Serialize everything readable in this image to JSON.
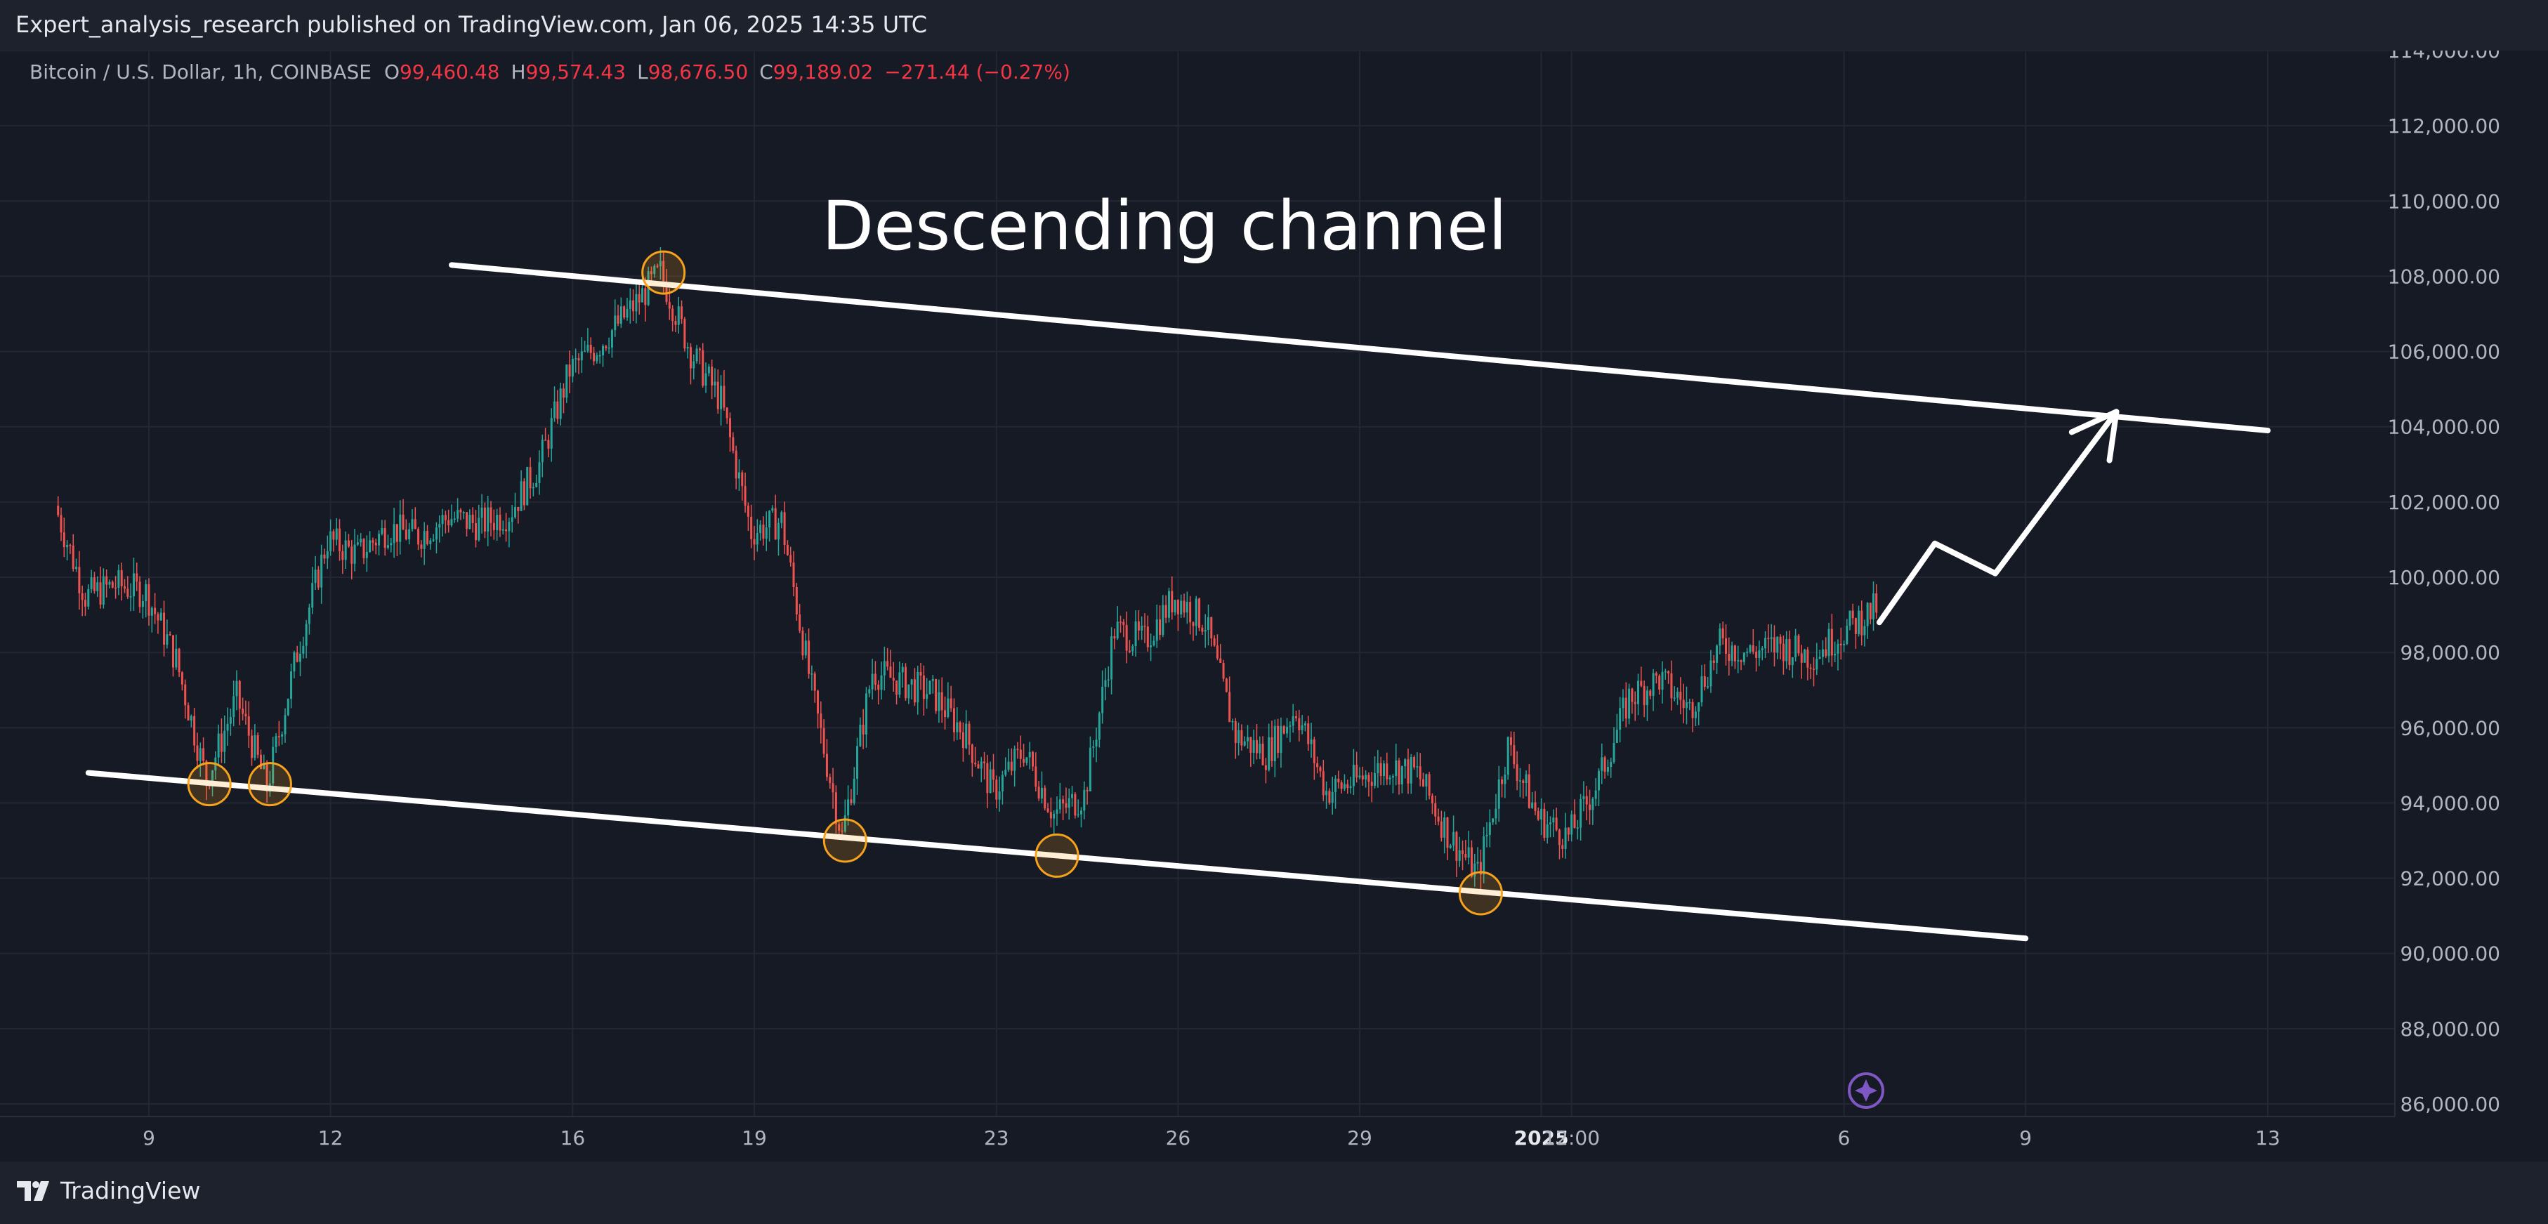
{
  "header": {
    "publish_line": "Expert_analysis_research published on TradingView.com, Jan 06, 2025 14:35 UTC"
  },
  "legend": {
    "symbol": "Bitcoin / U.S. Dollar, 1h, COINBASE",
    "o_label": "O",
    "o_value": "99,460.48",
    "h_label": "H",
    "h_value": "99,574.43",
    "l_label": "L",
    "l_value": "98,676.50",
    "c_label": "C",
    "c_value": "99,189.02",
    "change": "−271.44 (−0.27%)"
  },
  "footer": {
    "brand": "TradingView"
  },
  "colors": {
    "background": "#161a25",
    "grid": "#232733",
    "up": "#26a69a",
    "down": "#ef5350",
    "annotation": "#ffffff",
    "marker": "#f7a21b",
    "badge": "#7e57c2"
  },
  "chart_data": {
    "type": "line",
    "title": "",
    "annotation_text": "Descending channel",
    "y_ticks": [
      "114,000.00",
      "112,000.00",
      "110,000.00",
      "108,000.00",
      "106,000.00",
      "104,000.00",
      "102,000.00",
      "100,000.00",
      "98,000.00",
      "96,000.00",
      "94,000.00",
      "92,000.00",
      "90,000.00",
      "88,000.00",
      "86,000.00"
    ],
    "ylim": [
      86000,
      114000
    ],
    "x_ticks": [
      "9",
      "12",
      "16",
      "19",
      "23",
      "26",
      "29",
      "2025",
      "12:00",
      "6",
      "9",
      "13"
    ],
    "grid": true,
    "series": [
      {
        "values": [
          {
            "x": "Dec 7 12:00",
            "y": 101900
          },
          {
            "x": "Dec 8 00:00",
            "y": 99500
          },
          {
            "x": "Dec 8 12:00",
            "y": 99800
          },
          {
            "x": "Dec 9 00:00",
            "y": 99600
          },
          {
            "x": "Dec 9 12:00",
            "y": 97800
          },
          {
            "x": "Dec 10 00:00",
            "y": 94600
          },
          {
            "x": "Dec 10 12:00",
            "y": 96800
          },
          {
            "x": "Dec 11 00:00",
            "y": 94400
          },
          {
            "x": "Dec 11 12:00",
            "y": 98000
          },
          {
            "x": "Dec 12 00:00",
            "y": 101000
          },
          {
            "x": "Dec 12 12:00",
            "y": 100600
          },
          {
            "x": "Dec 13 00:00",
            "y": 101300
          },
          {
            "x": "Dec 13 12:00",
            "y": 101100
          },
          {
            "x": "Dec 14 00:00",
            "y": 101600
          },
          {
            "x": "Dec 14 12:00",
            "y": 101400
          },
          {
            "x": "Dec 15 00:00",
            "y": 101700
          },
          {
            "x": "Dec 15 12:00",
            "y": 103000
          },
          {
            "x": "Dec 16 00:00",
            "y": 105500
          },
          {
            "x": "Dec 16 12:00",
            "y": 106200
          },
          {
            "x": "Dec 17 00:00",
            "y": 107100
          },
          {
            "x": "Dec 17 12:00",
            "y": 108100
          },
          {
            "x": "Dec 18 00:00",
            "y": 106000
          },
          {
            "x": "Dec 18 12:00",
            "y": 104700
          },
          {
            "x": "Dec 19 00:00",
            "y": 101200
          },
          {
            "x": "Dec 19 12:00",
            "y": 101500
          },
          {
            "x": "Dec 20 00:00",
            "y": 97000
          },
          {
            "x": "Dec 20 12:00",
            "y": 93100
          },
          {
            "x": "Dec 21 00:00",
            "y": 97500
          },
          {
            "x": "Dec 21 12:00",
            "y": 97200
          },
          {
            "x": "Dec 22 00:00",
            "y": 96900
          },
          {
            "x": "Dec 22 12:00",
            "y": 95900
          },
          {
            "x": "Dec 23 00:00",
            "y": 94300
          },
          {
            "x": "Dec 23 12:00",
            "y": 95400
          },
          {
            "x": "Dec 24 00:00",
            "y": 93700
          },
          {
            "x": "Dec 24 12:00",
            "y": 94200
          },
          {
            "x": "Dec 25 00:00",
            "y": 98600
          },
          {
            "x": "Dec 25 12:00",
            "y": 98300
          },
          {
            "x": "Dec 26 00:00",
            "y": 99500
          },
          {
            "x": "Dec 26 12:00",
            "y": 98800
          },
          {
            "x": "Dec 27 00:00",
            "y": 95800
          },
          {
            "x": "Dec 27 12:00",
            "y": 95300
          },
          {
            "x": "Dec 28 00:00",
            "y": 96500
          },
          {
            "x": "Dec 28 12:00",
            "y": 94300
          },
          {
            "x": "Dec 29 00:00",
            "y": 94600
          },
          {
            "x": "Dec 29 12:00",
            "y": 95000
          },
          {
            "x": "Dec 30 00:00",
            "y": 94800
          },
          {
            "x": "Dec 30 12:00",
            "y": 93200
          },
          {
            "x": "Dec 31 00:00",
            "y": 92100
          },
          {
            "x": "Dec 31 12:00",
            "y": 95500
          },
          {
            "x": "Jan 1 00:00",
            "y": 93600
          },
          {
            "x": "Jan 1 12:00",
            "y": 93100
          },
          {
            "x": "Jan 2 00:00",
            "y": 94600
          },
          {
            "x": "Jan 2 12:00",
            "y": 96800
          },
          {
            "x": "Jan 3 00:00",
            "y": 97300
          },
          {
            "x": "Jan 3 12:00",
            "y": 96500
          },
          {
            "x": "Jan 4 00:00",
            "y": 98200
          },
          {
            "x": "Jan 4 12:00",
            "y": 98000
          },
          {
            "x": "Jan 5 00:00",
            "y": 98200
          },
          {
            "x": "Jan 5 12:00",
            "y": 97900
          },
          {
            "x": "Jan 6 00:00",
            "y": 98500
          },
          {
            "x": "Jan 6 14:00",
            "y": 99189
          }
        ]
      }
    ],
    "annotations": {
      "channel_upper": [
        {
          "x": "Dec 14",
          "y": 108300
        },
        {
          "x": "Jan 13",
          "y": 103900
        }
      ],
      "channel_lower": [
        {
          "x": "Dec 8",
          "y": 94800
        },
        {
          "x": "Jan 9",
          "y": 90400
        }
      ],
      "projection": [
        {
          "x": "Jan 6 14:00",
          "y": 98800
        },
        {
          "x": "Jan 7 12:00",
          "y": 100900
        },
        {
          "x": "Jan 8 12:00",
          "y": 100100
        },
        {
          "x": "Jan 10 12:00",
          "y": 104400
        }
      ],
      "touch_points": [
        {
          "x": "Dec 10 00:00",
          "y": 94500
        },
        {
          "x": "Dec 11 00:00",
          "y": 94500
        },
        {
          "x": "Dec 17 12:00",
          "y": 108100
        },
        {
          "x": "Dec 20 12:00",
          "y": 93000
        },
        {
          "x": "Dec 24 00:00",
          "y": 92600
        },
        {
          "x": "Dec 31 00:00",
          "y": 91600
        }
      ]
    }
  }
}
